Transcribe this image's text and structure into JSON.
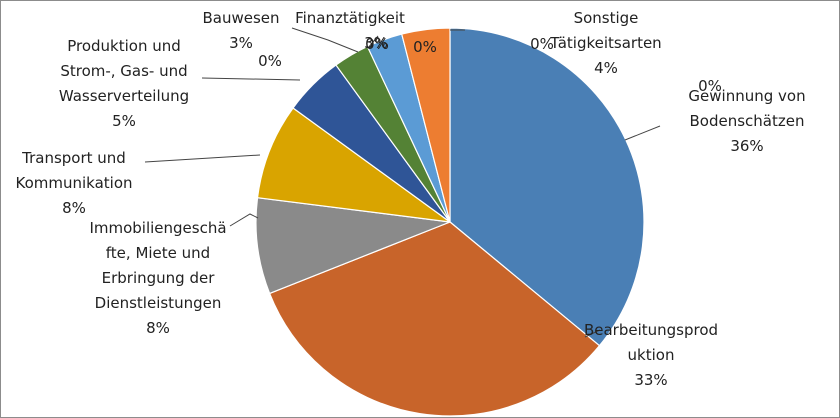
{
  "chart_data": {
    "type": "pie",
    "title": "",
    "slices": [
      {
        "name": "Gewinnung von Bodenschätzen",
        "value": 36,
        "pct_label": "36%",
        "label_lines": [
          "Gewinnung von",
          "Bodenschätzen",
          "36%"
        ],
        "color": "#4a7fb5"
      },
      {
        "name": "Bearbeitungsproduktion",
        "value": 33,
        "pct_label": "33%",
        "label_lines": [
          "Bearbeitungsprod",
          "uktion",
          "33%"
        ],
        "color": "#c8642a"
      },
      {
        "name": "Immobiliengeschäfte, Miete und Erbringung der Dienstleistungen",
        "value": 8,
        "pct_label": "8%",
        "label_lines": [
          "Immobiliengeschä",
          "fte, Miete und",
          "Erbringung der",
          "Dienstleistungen",
          "8%"
        ],
        "color": "#8a8a8a"
      },
      {
        "name": "Transport und Kommunikation",
        "value": 8,
        "pct_label": "8%",
        "label_lines": [
          "Transport und",
          "Kommunikation",
          "8%"
        ],
        "color": "#d9a400"
      },
      {
        "name": "Produktion und Strom-, Gas- und Wasserverteilung",
        "value": 5,
        "pct_label": "5%",
        "label_lines": [
          "Produktion und",
          "Strom-, Gas- und",
          "Wasserverteilung",
          "5%"
        ],
        "color": "#2f5597"
      },
      {
        "name": "Bauwesen",
        "value": 3,
        "pct_label": "3%",
        "label_lines": [
          "Bauwesen",
          "3%"
        ],
        "color": "#548235"
      },
      {
        "name": "Finanztätigkeit",
        "value": 3,
        "pct_label": "3%",
        "label_lines": [
          "Finanztätigkeit",
          "3%"
        ],
        "color": "#5b9bd5"
      },
      {
        "name": "Sonstige Tätigkeitsarten",
        "value": 4,
        "pct_label": "4%",
        "label_lines": [
          "Sonstige",
          "Tätigkeitsarten",
          "4%"
        ],
        "color": "#ed7d31"
      }
    ],
    "extra_labels": [
      "0%",
      "0%",
      "0%",
      "0%",
      "0%"
    ]
  }
}
